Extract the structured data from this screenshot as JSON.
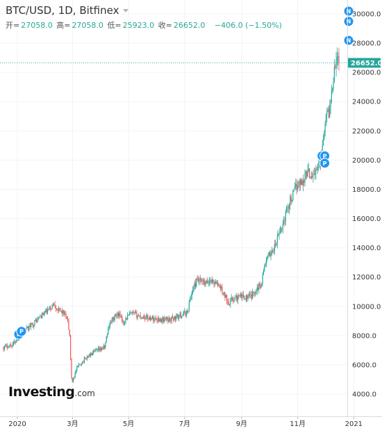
{
  "header": {
    "title": "BTC/USD, 1D, Bitfinex",
    "ohlc": {
      "open_label": "开=",
      "open": "27058.0",
      "high_label": "高=",
      "high": "27058.0",
      "low_label": "低=",
      "low": "25923.0",
      "close_label": "收=",
      "close": "26652.0",
      "change": "−406.0 (−1.50%)"
    }
  },
  "logo": {
    "brand": "Investing",
    "domain": ".com"
  },
  "colors": {
    "up": "#26a69a",
    "down": "#ef5350",
    "marker": "#2196f3",
    "grid": "#f0f3fa",
    "last_price": "#26a69a"
  },
  "chart_data": {
    "type": "candlestick",
    "symbol": "BTC/USD",
    "interval": "1D",
    "exchange": "Bitfinex",
    "x_ticks": [
      "2020",
      "3月",
      "5月",
      "7月",
      "9月",
      "11月",
      "2021"
    ],
    "y_ticks": [
      "4000.0",
      "6000.0",
      "8000.0",
      "10000.0",
      "12000.0",
      "14000.0",
      "16000.0",
      "18000.0",
      "20000.0",
      "22000.0",
      "24000.0",
      "26000.0",
      "28000.0",
      "30000.0"
    ],
    "ylim": [
      3500,
      30500
    ],
    "last_price": {
      "value": 26652,
      "label": "26652.0"
    },
    "price_path": [
      [
        0,
        7200
      ],
      [
        10,
        7400
      ],
      [
        20,
        8100
      ],
      [
        30,
        8700
      ],
      [
        40,
        9300
      ],
      [
        50,
        9800
      ],
      [
        55,
        10200
      ],
      [
        60,
        9700
      ],
      [
        65,
        9600
      ],
      [
        70,
        8900
      ],
      [
        72,
        8000
      ],
      [
        74,
        5000
      ],
      [
        75,
        4900
      ],
      [
        80,
        5800
      ],
      [
        90,
        6500
      ],
      [
        100,
        6900
      ],
      [
        110,
        7200
      ],
      [
        115,
        8800
      ],
      [
        120,
        9200
      ],
      [
        125,
        9500
      ],
      [
        130,
        8900
      ],
      [
        135,
        9300
      ],
      [
        140,
        9500
      ],
      [
        150,
        9300
      ],
      [
        160,
        9200
      ],
      [
        170,
        9100
      ],
      [
        180,
        9100
      ],
      [
        190,
        9300
      ],
      [
        200,
        9600
      ],
      [
        205,
        11000
      ],
      [
        210,
        11700
      ],
      [
        215,
        11700
      ],
      [
        220,
        11500
      ],
      [
        225,
        11800
      ],
      [
        230,
        11600
      ],
      [
        235,
        11400
      ],
      [
        240,
        10800
      ],
      [
        245,
        10300
      ],
      [
        250,
        10500
      ],
      [
        260,
        10700
      ],
      [
        265,
        10600
      ],
      [
        270,
        10700
      ],
      [
        275,
        11200
      ],
      [
        280,
        11500
      ],
      [
        285,
        13000
      ],
      [
        290,
        13600
      ],
      [
        295,
        14000
      ],
      [
        300,
        15000
      ],
      [
        305,
        15800
      ],
      [
        310,
        17000
      ],
      [
        315,
        17600
      ],
      [
        320,
        18400
      ],
      [
        325,
        18500
      ],
      [
        330,
        19200
      ],
      [
        335,
        19000
      ],
      [
        340,
        19200
      ],
      [
        345,
        20000
      ],
      [
        350,
        22800
      ],
      [
        355,
        23500
      ],
      [
        360,
        26500
      ],
      [
        362,
        27000
      ],
      [
        365,
        26652
      ]
    ],
    "markers": [
      {
        "label": "P",
        "day": 3,
        "price": 7900
      },
      {
        "label": "P",
        "day": 6,
        "price": 8100
      },
      {
        "label": "P",
        "day": 333,
        "price": 20100
      },
      {
        "label": "P",
        "day": 336,
        "price": 20100
      },
      {
        "label": "P",
        "day": 336,
        "price": 19600
      },
      {
        "label": "N",
        "day": 362,
        "price": 28000
      },
      {
        "label": "N",
        "day": 362,
        "price": 29300
      },
      {
        "label": "N",
        "day": 362,
        "price": 30000
      }
    ]
  }
}
